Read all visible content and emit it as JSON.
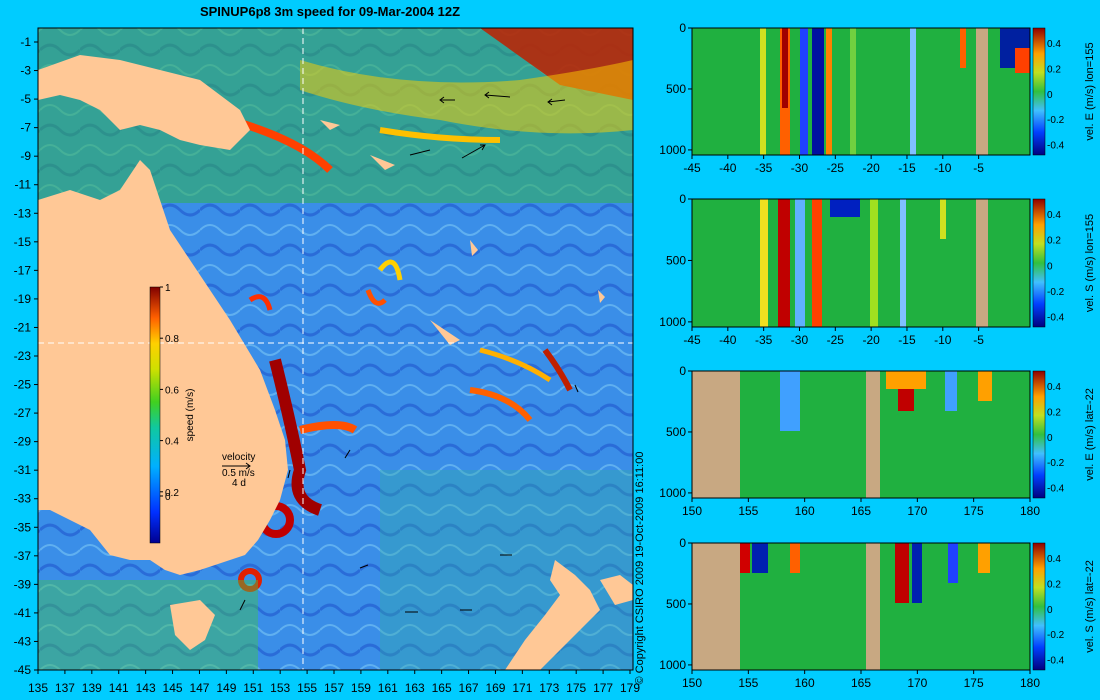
{
  "title": "SPINUP6p8 3m speed for 09-Mar-2004 12Z",
  "colors": {
    "background": "#00ccff",
    "land": "#ffc896",
    "section_land": "#c8a882",
    "guides": "#ffffff"
  },
  "map": {
    "lon_ticks": [
      "135",
      "137",
      "139",
      "141",
      "143",
      "145",
      "147",
      "149",
      "151",
      "153",
      "155",
      "157",
      "159",
      "161",
      "163",
      "165",
      "167",
      "169",
      "171",
      "173",
      "175",
      "177",
      "179"
    ],
    "lat_ticks": [
      "-1",
      "-3",
      "-5",
      "-7",
      "-9",
      "-11",
      "-13",
      "-15",
      "-17",
      "-19",
      "-21",
      "-23",
      "-25",
      "-27",
      "-29",
      "-31",
      "-33",
      "-35",
      "-37",
      "-39",
      "-41",
      "-43",
      "-45"
    ],
    "colorbar": {
      "label": "speed (m/s)",
      "ticks": [
        "1",
        "0.8",
        "0.6",
        "0.4",
        "0.2",
        "0"
      ]
    },
    "legend": {
      "label": "velocity",
      "scale": "0.5 m/s",
      "time": "4 d"
    },
    "copyright": "© Copyright CSIRO 2009  19-Oct-2009 16:11:00"
  },
  "sections": [
    {
      "ylabel": "vel. E (m/s) lon=155",
      "x_ticks": [
        "-45",
        "-40",
        "-35",
        "-30",
        "-25",
        "-20",
        "-15",
        "-10",
        "-5"
      ],
      "y_ticks": [
        "0",
        "500",
        "1000"
      ],
      "cbar_ticks": [
        "0.4",
        "0.2",
        "0",
        "-0.2",
        "-0.4"
      ]
    },
    {
      "ylabel": "vel. S (m/s) lon=155",
      "x_ticks": [
        "-45",
        "-40",
        "-35",
        "-30",
        "-25",
        "-20",
        "-15",
        "-10",
        "-5"
      ],
      "y_ticks": [
        "0",
        "500",
        "1000"
      ],
      "cbar_ticks": [
        "0.4",
        "0.2",
        "0",
        "-0.2",
        "-0.4"
      ]
    },
    {
      "ylabel": "vel. E (m/s) lat=-22",
      "x_ticks": [
        "150",
        "155",
        "160",
        "165",
        "170",
        "175",
        "180"
      ],
      "y_ticks": [
        "0",
        "500",
        "1000"
      ],
      "cbar_ticks": [
        "0.4",
        "0.2",
        "0",
        "-0.2",
        "-0.4"
      ]
    },
    {
      "ylabel": "vel. S (m/s) lat=-22",
      "x_ticks": [
        "150",
        "155",
        "160",
        "165",
        "170",
        "175",
        "180"
      ],
      "y_ticks": [
        "0",
        "500",
        "1000"
      ],
      "cbar_ticks": [
        "0.4",
        "0.2",
        "0",
        "-0.2",
        "-0.4"
      ]
    }
  ]
}
